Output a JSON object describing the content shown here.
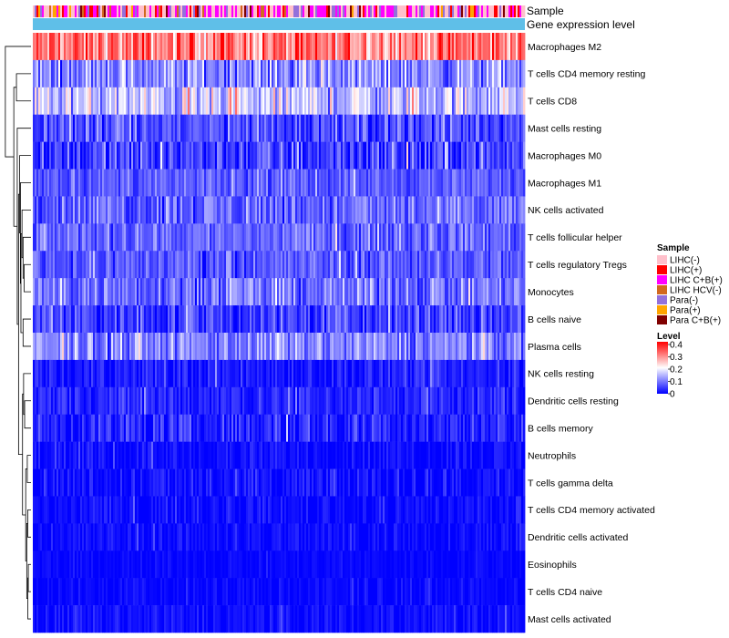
{
  "chart_data": {
    "type": "heatmap",
    "title": "",
    "annotation_tracks": [
      {
        "label": "Sample"
      },
      {
        "label": "Gene expression level"
      }
    ],
    "rows": [
      {
        "label": "Macrophages M2",
        "mean": 0.3,
        "spread": 0.07
      },
      {
        "label": "T cells CD4 memory resting",
        "mean": 0.11,
        "spread": 0.06
      },
      {
        "label": "T cells CD8",
        "mean": 0.15,
        "spread": 0.07
      },
      {
        "label": "Mast cells resting",
        "mean": 0.06,
        "spread": 0.05
      },
      {
        "label": "Macrophages M0",
        "mean": 0.05,
        "spread": 0.06
      },
      {
        "label": "Macrophages M1",
        "mean": 0.07,
        "spread": 0.03
      },
      {
        "label": "NK cells activated",
        "mean": 0.08,
        "spread": 0.05
      },
      {
        "label": "T cells follicular helper",
        "mean": 0.08,
        "spread": 0.04
      },
      {
        "label": "T cells regulatory  Tregs",
        "mean": 0.07,
        "spread": 0.04
      },
      {
        "label": "Monocytes",
        "mean": 0.09,
        "spread": 0.05
      },
      {
        "label": "B cells naive",
        "mean": 0.05,
        "spread": 0.05
      },
      {
        "label": "Plasma cells",
        "mean": 0.1,
        "spread": 0.05
      },
      {
        "label": "NK cells resting",
        "mean": 0.02,
        "spread": 0.03
      },
      {
        "label": "Dendritic cells resting",
        "mean": 0.03,
        "spread": 0.03
      },
      {
        "label": "B cells memory",
        "mean": 0.03,
        "spread": 0.04
      },
      {
        "label": "Neutrophils",
        "mean": 0.01,
        "spread": 0.02
      },
      {
        "label": "T cells gamma delta",
        "mean": 0.01,
        "spread": 0.03
      },
      {
        "label": "T cells CD4 memory activated",
        "mean": 0.01,
        "spread": 0.02
      },
      {
        "label": "Dendritic cells activated",
        "mean": 0.01,
        "spread": 0.02
      },
      {
        "label": "Eosinophils",
        "mean": 0.005,
        "spread": 0.01
      },
      {
        "label": "T cells CD4 naive",
        "mean": 0.005,
        "spread": 0.015
      },
      {
        "label": "Mast cells activated",
        "mean": 0.01,
        "spread": 0.02
      }
    ],
    "n_columns": 270,
    "color_scale": {
      "title": "Level",
      "range": [
        0,
        0.4
      ],
      "ticks": [
        "0.4",
        "0.3",
        "0.2",
        "0.1",
        "0"
      ],
      "stops": [
        "#0000ff",
        "#ffffff",
        "#ff0000"
      ]
    },
    "sample_legend": {
      "title": "Sample",
      "items": [
        {
          "label": "LIHC(-)",
          "color": "#ffc0cb"
        },
        {
          "label": "LIHC(+)",
          "color": "#ff0000"
        },
        {
          "label": "LIHC C+B(+)",
          "color": "#ff00ff"
        },
        {
          "label": "LIHC HCV(-)",
          "color": "#d2691e"
        },
        {
          "label": "Para(-)",
          "color": "#9370db"
        },
        {
          "label": "Para(+)",
          "color": "#ffa500"
        },
        {
          "label": "Para C+B(+)",
          "color": "#800000"
        }
      ]
    },
    "gene_expression_color": "#5fbfe8",
    "legend_position": "right"
  }
}
